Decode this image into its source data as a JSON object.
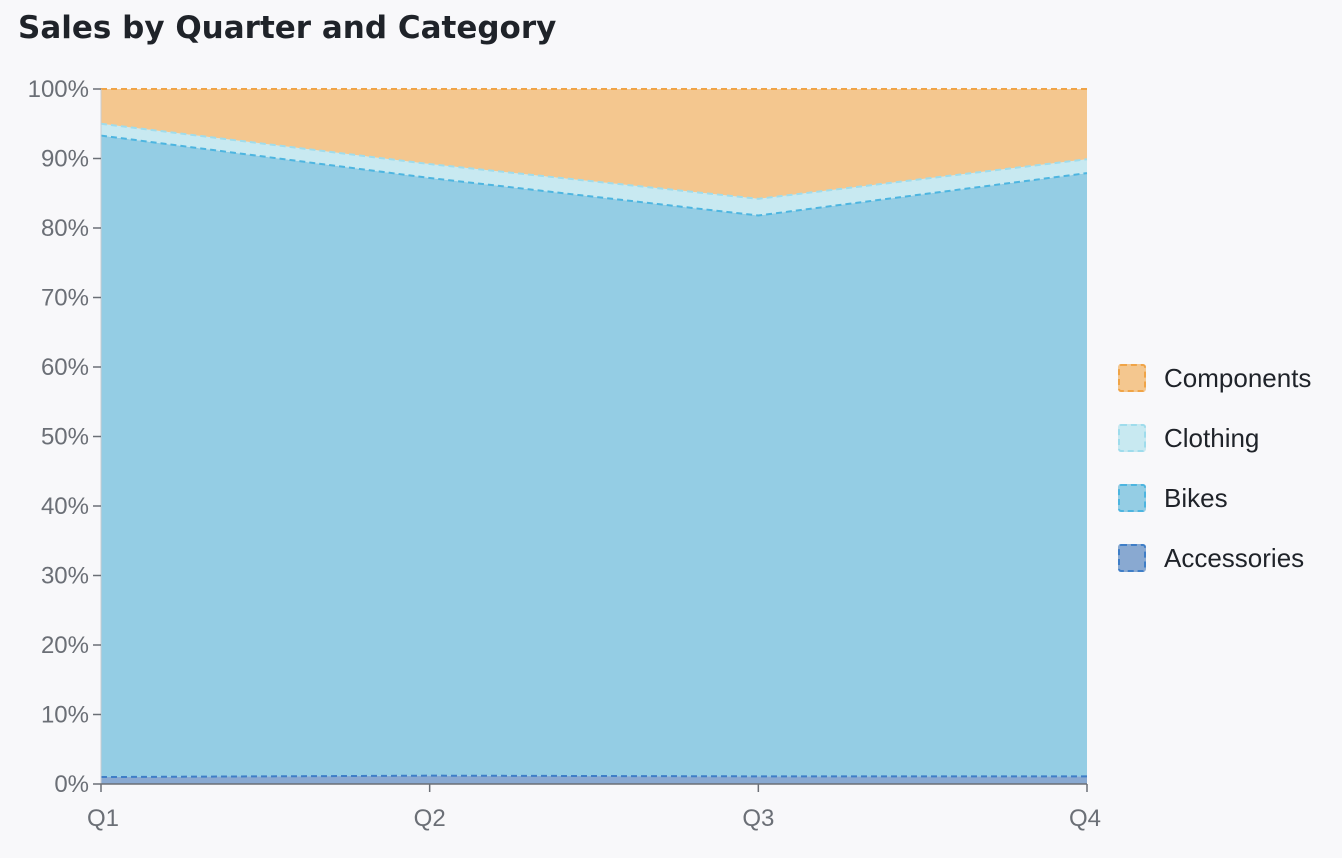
{
  "title": "Sales by Quarter and Category",
  "chart_data": {
    "type": "area",
    "stacked": true,
    "normalized": true,
    "title": "Sales by Quarter and Category",
    "xlabel": "",
    "ylabel": "",
    "categories": [
      "Q1",
      "Q2",
      "Q3",
      "Q4"
    ],
    "y_ticks": [
      "0%",
      "10%",
      "20%",
      "30%",
      "40%",
      "50%",
      "60%",
      "70%",
      "80%",
      "90%",
      "100%"
    ],
    "ylim": [
      0,
      100
    ],
    "grid": false,
    "legend_position": "right",
    "series": [
      {
        "name": "Accessories",
        "values": [
          1.0,
          1.2,
          1.1,
          1.1
        ],
        "fill": "#89a9d1",
        "stroke": "#3f7ec7"
      },
      {
        "name": "Bikes",
        "values": [
          92.3,
          86.0,
          80.7,
          86.8
        ],
        "fill": "#94cde4",
        "stroke": "#4db5e0"
      },
      {
        "name": "Clothing",
        "values": [
          1.7,
          2.0,
          2.4,
          2.0
        ],
        "fill": "#c8e9f1",
        "stroke": "#9fdcec"
      },
      {
        "name": "Components",
        "values": [
          5.0,
          10.8,
          15.8,
          10.1
        ],
        "fill": "#f4c78f",
        "stroke": "#f0a447"
      }
    ]
  }
}
